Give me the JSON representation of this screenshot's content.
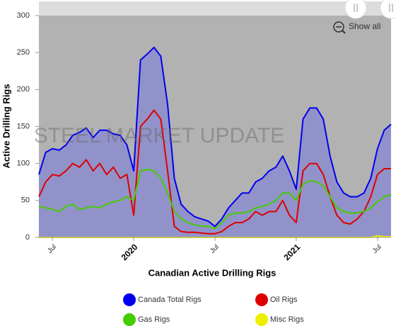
{
  "chart_data": {
    "type": "line",
    "xlabel": "Canadian Active Drilling Rigs",
    "ylabel": "Active Drilling Rigs",
    "watermark": "STEEL MARKET UPDATE",
    "categories": [
      null,
      null,
      "Jul",
      null,
      null,
      null,
      null,
      null,
      null,
      null,
      null,
      null,
      null,
      null,
      "2020",
      null,
      null,
      null,
      null,
      null,
      null,
      null,
      null,
      null,
      null,
      null,
      "Jul",
      null,
      null,
      null,
      null,
      null,
      null,
      null,
      null,
      null,
      null,
      null,
      "2021",
      null,
      null,
      null,
      null,
      null,
      null,
      null,
      null,
      null,
      null,
      null,
      "Jul",
      null,
      null
    ],
    "series": [
      {
        "name": "Canada Total Rigs",
        "color": "#0000ee",
        "area": true,
        "values": [
          85,
          115,
          120,
          118,
          125,
          138,
          142,
          148,
          135,
          145,
          145,
          140,
          138,
          125,
          90,
          240,
          248,
          257,
          245,
          180,
          80,
          45,
          35,
          28,
          25,
          22,
          15,
          25,
          40,
          50,
          60,
          60,
          75,
          80,
          90,
          95,
          110,
          90,
          65,
          160,
          175,
          175,
          160,
          110,
          75,
          60,
          55,
          55,
          60,
          80,
          120,
          145,
          153
        ]
      },
      {
        "name": "Oil Rigs",
        "color": "#dd0000",
        "values": [
          55,
          75,
          85,
          83,
          90,
          100,
          95,
          105,
          90,
          100,
          85,
          95,
          80,
          85,
          30,
          150,
          160,
          172,
          160,
          90,
          15,
          8,
          7,
          7,
          6,
          5,
          5,
          8,
          15,
          20,
          20,
          25,
          35,
          30,
          35,
          35,
          50,
          30,
          20,
          90,
          100,
          100,
          85,
          55,
          30,
          20,
          18,
          25,
          35,
          55,
          85,
          93,
          93
        ]
      },
      {
        "name": "Gas Rigs",
        "color": "#44cc00",
        "values": [
          42,
          40,
          38,
          35,
          42,
          45,
          38,
          40,
          42,
          40,
          45,
          48,
          50,
          55,
          50,
          90,
          92,
          90,
          80,
          60,
          35,
          25,
          20,
          17,
          15,
          15,
          12,
          20,
          30,
          33,
          33,
          35,
          40,
          42,
          45,
          50,
          60,
          60,
          50,
          72,
          77,
          75,
          70,
          55,
          40,
          35,
          33,
          33,
          35,
          40,
          48,
          55,
          58
        ]
      },
      {
        "name": "Misc Rigs",
        "color": "#eeee00",
        "values": [
          0,
          0,
          0,
          0,
          0,
          0,
          0,
          0,
          0,
          0,
          0,
          0,
          0,
          0,
          0,
          0,
          0,
          0,
          0,
          0,
          0,
          0,
          0,
          0,
          0,
          0,
          0,
          0,
          0,
          0,
          0,
          0,
          0,
          0,
          0,
          0,
          0,
          0,
          0,
          0,
          0,
          0,
          0,
          0,
          0,
          0,
          0,
          0,
          0,
          0,
          2,
          1,
          1
        ]
      }
    ],
    "ylim": [
      0,
      300
    ],
    "yticks": [
      0,
      50,
      100,
      150,
      200,
      250,
      300
    ]
  },
  "controls": {
    "show_all": "Show all"
  }
}
